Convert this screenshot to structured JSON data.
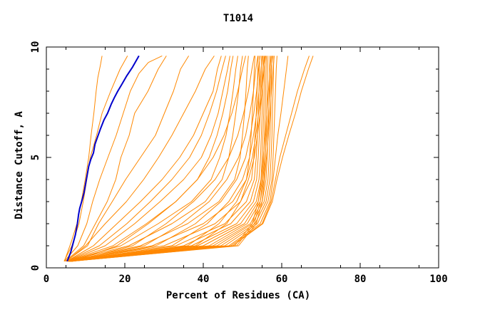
{
  "chart_data": {
    "type": "line",
    "title": "T1014",
    "xlabel": "Percent of Residues (CA)",
    "ylabel": "Distance Cutoff, A",
    "xlim": [
      0,
      100
    ],
    "ylim": [
      0,
      10
    ],
    "xticks": [
      0,
      20,
      40,
      60,
      80,
      100
    ],
    "yticks": [
      0,
      5,
      10
    ],
    "grid": false,
    "legend": "none",
    "colors": {
      "highlight": "#0000cc",
      "others": "#ff8800",
      "axis": "#000000"
    },
    "series": [
      {
        "color": "#0000cc",
        "highlight": true,
        "x": [
          5.3,
          6.2,
          6.8,
          7.4,
          7.9,
          8.2,
          8.5,
          9.0,
          9.6,
          10.0,
          10.4,
          10.8,
          11.3,
          12.0,
          12.4,
          13.0,
          13.8,
          14.7,
          15.6,
          16.5,
          17.3,
          18.2,
          19.2,
          20.5,
          22.0,
          23.6
        ],
        "y": [
          0.3,
          0.7,
          1.1,
          1.5,
          2.0,
          2.4,
          2.7,
          3.0,
          3.4,
          3.8,
          4.2,
          4.6,
          4.9,
          5.2,
          5.6,
          5.9,
          6.3,
          6.7,
          7.0,
          7.4,
          7.7,
          8.0,
          8.3,
          8.7,
          9.1,
          9.6
        ]
      },
      {
        "x": [
          4.6,
          6.4,
          7.8,
          8.9,
          9.9,
          10.8,
          11.4,
          12.1,
          12.7,
          13.1,
          13.8,
          14.2
        ],
        "y": [
          0.3,
          1.2,
          2.0,
          3.0,
          4.0,
          5.0,
          6.0,
          7.0,
          8.0,
          8.6,
          9.2,
          9.6
        ]
      },
      {
        "x": [
          4.5,
          6.5,
          8.3,
          9.4,
          10.3,
          11.2,
          12.8,
          14.2,
          16.4,
          18.8,
          20.7
        ],
        "y": [
          0.3,
          1.0,
          2.0,
          3.0,
          4.0,
          5.0,
          6.0,
          7.0,
          8.0,
          9.0,
          9.6
        ]
      },
      {
        "x": [
          4.6,
          8.0,
          10.3,
          11.8,
          13.6,
          15.7,
          17.8,
          19.6,
          21.4,
          23.6,
          26.0,
          29.5
        ],
        "y": [
          0.3,
          1.0,
          2.0,
          3.0,
          4.0,
          5.0,
          6.0,
          7.0,
          8.0,
          8.8,
          9.3,
          9.6
        ]
      },
      {
        "x": [
          4.8,
          9.5,
          12.5,
          15.5,
          17.7,
          19.0,
          21.1,
          22.5,
          25.9,
          28.5,
          30.6
        ],
        "y": [
          0.3,
          1.0,
          2.0,
          3.0,
          4.0,
          5.0,
          6.0,
          7.0,
          8.0,
          9.0,
          9.6
        ]
      },
      {
        "x": [
          5.0,
          10.5,
          13.3,
          16.8,
          20.2,
          24.0,
          27.8,
          30.1,
          32.4,
          34.2,
          36.3
        ],
        "y": [
          0.3,
          1.0,
          2.0,
          3.0,
          4.0,
          5.0,
          6.0,
          7.0,
          8.0,
          9.0,
          9.6
        ]
      },
      {
        "x": [
          5.1,
          10.0,
          15.0,
          20.4,
          24.8,
          28.6,
          32.0,
          35.0,
          38.0,
          40.5,
          42.8
        ],
        "y": [
          0.3,
          1.0,
          2.0,
          3.0,
          4.0,
          5.0,
          6.0,
          7.0,
          8.0,
          9.0,
          9.6
        ]
      },
      {
        "x": [
          5.2,
          12.0,
          18.0,
          24.0,
          29.5,
          34.0,
          37.5,
          40.0,
          42.5,
          43.6,
          44.6
        ],
        "y": [
          0.3,
          1.0,
          2.0,
          3.0,
          4.0,
          5.0,
          6.0,
          7.0,
          8.0,
          9.0,
          9.6
        ]
      },
      {
        "x": [
          5.2,
          13.5,
          20.5,
          26.5,
          32.0,
          36.5,
          39.5,
          41.6,
          43.4,
          44.8,
          45.7
        ],
        "y": [
          0.3,
          1.0,
          2.0,
          3.0,
          4.0,
          5.0,
          6.0,
          7.0,
          8.0,
          9.0,
          9.6
        ]
      },
      {
        "x": [
          5.3,
          15.0,
          22.5,
          29.0,
          35.0,
          39.5,
          42.0,
          43.8,
          45.0,
          46.2,
          46.8
        ],
        "y": [
          0.3,
          1.0,
          2.0,
          3.0,
          4.0,
          5.0,
          6.0,
          7.0,
          8.0,
          9.0,
          9.6
        ]
      },
      {
        "x": [
          5.3,
          17.0,
          25.5,
          33.0,
          38.5,
          41.5,
          43.5,
          45.0,
          46.2,
          47.0,
          47.6
        ],
        "y": [
          0.3,
          1.0,
          2.0,
          3.0,
          4.0,
          5.0,
          6.0,
          7.0,
          8.0,
          9.0,
          9.6
        ]
      },
      {
        "x": [
          5.4,
          19.0,
          28.5,
          37.0,
          42.0,
          44.2,
          45.8,
          46.8,
          47.6,
          48.3,
          48.8
        ],
        "y": [
          0.3,
          1.0,
          2.0,
          3.0,
          4.0,
          5.0,
          6.0,
          7.0,
          8.0,
          9.0,
          9.6
        ]
      },
      {
        "x": [
          5.4,
          21.0,
          32.0,
          40.5,
          44.8,
          46.5,
          47.5,
          48.3,
          49.0,
          49.5,
          50.0
        ],
        "y": [
          0.3,
          1.0,
          2.0,
          3.0,
          4.0,
          5.0,
          6.0,
          7.0,
          8.0,
          9.0,
          9.6
        ]
      },
      {
        "x": [
          5.5,
          24.0,
          36.0,
          44.0,
          48.0,
          49.4,
          50.0,
          50.5,
          50.9,
          51.2,
          51.5
        ],
        "y": [
          0.3,
          1.0,
          2.0,
          3.0,
          4.0,
          5.0,
          6.0,
          7.0,
          8.0,
          9.0,
          9.6
        ]
      },
      {
        "x": [
          5.6,
          27.0,
          40.0,
          47.5,
          51.0,
          51.8,
          52.2,
          52.5,
          52.8,
          53.0,
          53.2
        ],
        "y": [
          0.3,
          1.0,
          2.0,
          3.0,
          4.0,
          5.0,
          6.0,
          7.0,
          8.0,
          9.0,
          9.6
        ]
      },
      {
        "x": [
          5.6,
          30.0,
          43.0,
          49.5,
          52.3,
          52.9,
          53.2,
          53.5,
          53.7,
          53.9,
          54.0
        ],
        "y": [
          0.3,
          1.0,
          2.0,
          3.0,
          4.0,
          5.0,
          6.0,
          7.0,
          8.0,
          9.0,
          9.6
        ]
      },
      {
        "x": [
          5.7,
          33.0,
          45.5,
          51.0,
          53.0,
          53.5,
          53.8,
          54.0,
          54.2,
          54.3,
          54.4
        ],
        "y": [
          0.3,
          1.0,
          2.0,
          3.0,
          4.0,
          5.0,
          6.0,
          7.0,
          8.0,
          9.0,
          9.6
        ]
      },
      {
        "x": [
          5.7,
          35.0,
          47.0,
          52.0,
          53.6,
          54.0,
          54.3,
          54.5,
          54.6,
          54.8,
          54.9
        ],
        "y": [
          0.3,
          1.0,
          2.0,
          3.0,
          4.0,
          5.0,
          6.0,
          7.0,
          8.0,
          9.0,
          9.6
        ]
      },
      {
        "x": [
          5.8,
          37.0,
          48.5,
          52.8,
          54.2,
          54.6,
          54.8,
          55.0,
          55.1,
          55.2,
          55.3
        ],
        "y": [
          0.3,
          1.0,
          2.0,
          3.0,
          4.0,
          5.0,
          6.0,
          7.0,
          8.0,
          9.0,
          9.6
        ]
      },
      {
        "x": [
          5.8,
          38.5,
          49.5,
          53.5,
          54.7,
          55.0,
          55.2,
          55.4,
          55.5,
          55.6,
          55.7
        ],
        "y": [
          0.3,
          1.0,
          2.0,
          3.0,
          4.0,
          5.0,
          6.0,
          7.0,
          8.0,
          9.0,
          9.6
        ]
      },
      {
        "x": [
          5.9,
          40.0,
          50.5,
          54.0,
          55.1,
          55.4,
          55.6,
          55.8,
          55.9,
          56.0,
          56.1
        ],
        "y": [
          0.3,
          1.0,
          2.0,
          3.0,
          4.0,
          5.0,
          6.0,
          7.0,
          8.0,
          9.0,
          9.6
        ]
      },
      {
        "x": [
          5.9,
          41.5,
          51.2,
          54.5,
          55.5,
          55.8,
          56.0,
          56.2,
          56.3,
          56.4,
          56.5
        ],
        "y": [
          0.3,
          1.0,
          2.0,
          3.0,
          4.0,
          5.0,
          6.0,
          7.0,
          8.0,
          9.0,
          9.6
        ]
      },
      {
        "x": [
          6.0,
          42.5,
          52.0,
          55.0,
          56.0,
          56.3,
          56.5,
          56.7,
          56.8,
          56.9,
          57.0
        ],
        "y": [
          0.3,
          1.0,
          2.0,
          3.0,
          4.0,
          5.0,
          6.0,
          7.0,
          8.0,
          9.0,
          9.6
        ]
      },
      {
        "x": [
          6.0,
          43.5,
          52.5,
          55.5,
          56.5,
          56.8,
          57.0,
          57.2,
          57.3,
          57.4,
          57.5
        ],
        "y": [
          0.3,
          1.0,
          2.0,
          3.0,
          4.0,
          5.0,
          6.0,
          7.0,
          8.0,
          9.0,
          9.6
        ]
      },
      {
        "x": [
          6.1,
          44.5,
          53.2,
          56.0,
          57.0,
          57.3,
          57.5,
          57.6,
          57.8,
          57.9,
          58.0
        ],
        "y": [
          0.3,
          1.0,
          2.0,
          3.0,
          4.0,
          5.0,
          6.0,
          7.0,
          8.0,
          9.0,
          9.6
        ]
      },
      {
        "x": [
          6.1,
          45.5,
          53.8,
          56.5,
          57.5,
          57.8,
          58.0,
          58.2,
          58.4,
          58.6,
          58.8
        ],
        "y": [
          0.3,
          1.0,
          2.0,
          3.0,
          4.0,
          5.0,
          6.0,
          7.0,
          8.0,
          9.0,
          9.6
        ]
      },
      {
        "x": [
          6.2,
          46.5,
          54.5,
          57.0,
          57.8,
          58.4,
          59.0,
          59.8,
          60.5,
          61.2,
          61.6
        ],
        "y": [
          0.3,
          1.0,
          2.0,
          3.0,
          4.0,
          5.0,
          6.0,
          7.0,
          8.0,
          9.0,
          9.6
        ]
      },
      {
        "x": [
          6.2,
          47.0,
          55.0,
          57.3,
          58.4,
          59.5,
          61.0,
          62.5,
          64.0,
          65.8,
          67.0
        ],
        "y": [
          0.3,
          1.0,
          2.0,
          3.0,
          4.0,
          5.0,
          6.0,
          7.0,
          8.0,
          9.0,
          9.6
        ]
      },
      {
        "x": [
          6.3,
          47.5,
          55.2,
          57.6,
          58.8,
          60.2,
          61.8,
          63.5,
          65.0,
          66.8,
          68.0
        ],
        "y": [
          0.3,
          1.0,
          2.0,
          3.0,
          4.0,
          5.0,
          6.0,
          7.0,
          8.0,
          9.0,
          9.6
        ]
      },
      {
        "x": [
          6.3,
          48.0,
          52.5,
          54.0,
          54.8,
          55.3,
          55.8,
          56.2,
          56.6,
          57.0,
          57.3
        ],
        "y": [
          0.3,
          1.0,
          2.0,
          3.0,
          4.0,
          5.0,
          6.0,
          7.0,
          8.0,
          9.0,
          9.6
        ]
      },
      {
        "x": [
          6.4,
          48.5,
          53.0,
          54.5,
          55.2,
          55.7,
          56.2,
          56.6,
          57.0,
          57.3,
          57.7
        ],
        "y": [
          0.3,
          1.0,
          2.0,
          3.0,
          4.0,
          5.0,
          6.0,
          7.0,
          8.0,
          9.0,
          9.6
        ]
      },
      {
        "x": [
          6.4,
          49.0,
          53.5,
          55.0,
          55.6,
          56.1,
          56.6,
          57.0,
          57.4,
          57.8,
          58.1
        ],
        "y": [
          0.3,
          1.0,
          2.0,
          3.0,
          4.0,
          5.0,
          6.0,
          7.0,
          8.0,
          9.0,
          9.6
        ]
      },
      {
        "x": [
          6.5,
          38.0,
          46.0,
          49.5,
          51.5,
          53.0,
          53.8,
          54.5,
          55.0,
          55.5,
          55.9
        ],
        "y": [
          0.3,
          1.0,
          2.0,
          3.0,
          4.0,
          5.0,
          6.0,
          7.0,
          8.0,
          9.0,
          9.6
        ]
      },
      {
        "x": [
          6.5,
          36.0,
          44.0,
          48.5,
          51.0,
          52.5,
          53.4,
          54.1,
          54.7,
          55.2,
          55.6
        ],
        "y": [
          0.3,
          1.0,
          2.0,
          3.0,
          4.0,
          5.0,
          6.0,
          7.0,
          8.0,
          9.0,
          9.6
        ]
      },
      {
        "x": [
          6.6,
          32.0,
          41.0,
          46.5,
          50.0,
          51.8,
          52.8,
          53.6,
          54.2,
          54.7,
          55.1
        ],
        "y": [
          0.3,
          1.0,
          2.0,
          3.0,
          4.0,
          5.0,
          6.0,
          7.0,
          8.0,
          9.0,
          9.6
        ]
      },
      {
        "x": [
          6.6,
          28.0,
          38.0,
          44.5,
          48.5,
          50.8,
          52.0,
          52.9,
          53.6,
          54.1,
          54.5
        ],
        "y": [
          0.3,
          1.0,
          2.0,
          3.0,
          4.0,
          5.0,
          6.0,
          7.0,
          8.0,
          9.0,
          9.6
        ]
      },
      {
        "x": [
          6.7,
          25.0,
          34.5,
          41.5,
          46.0,
          49.0,
          50.8,
          51.9,
          52.8,
          53.4,
          53.9
        ],
        "y": [
          0.3,
          1.0,
          2.0,
          3.0,
          4.0,
          5.0,
          6.0,
          7.0,
          8.0,
          9.0,
          9.6
        ]
      },
      {
        "x": [
          6.8,
          22.0,
          30.5,
          37.5,
          43.0,
          46.5,
          48.8,
          50.3,
          51.5,
          52.4,
          53.0
        ],
        "y": [
          0.3,
          1.0,
          2.0,
          3.0,
          4.0,
          5.0,
          6.0,
          7.0,
          8.0,
          9.0,
          9.6
        ]
      },
      {
        "x": [
          6.9,
          18.0,
          26.0,
          33.0,
          38.5,
          42.5,
          45.3,
          47.3,
          48.8,
          50.0,
          50.8
        ],
        "y": [
          0.3,
          1.0,
          2.0,
          3.0,
          4.0,
          5.0,
          6.0,
          7.0,
          8.0,
          9.0,
          9.6
        ]
      }
    ]
  }
}
